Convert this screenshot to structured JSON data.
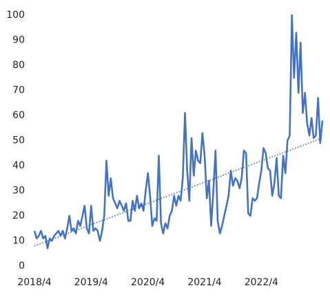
{
  "chart_data": {
    "type": "line",
    "color": "#4472c4",
    "categories": [
      "2018/4",
      null,
      null,
      null,
      null,
      null,
      null,
      null,
      null,
      null,
      null,
      null,
      null,
      null,
      null,
      null,
      null,
      null,
      null,
      null,
      null,
      null,
      null,
      null,
      null,
      null,
      "2019/4",
      null,
      null,
      null,
      null,
      null,
      null,
      null,
      null,
      null,
      null,
      null,
      null,
      null,
      null,
      null,
      null,
      null,
      null,
      null,
      null,
      null,
      null,
      null,
      null,
      null,
      "2020/4",
      null,
      null,
      null,
      null,
      null,
      null,
      null,
      null,
      null,
      null,
      null,
      null,
      null,
      null,
      null,
      null,
      null,
      null,
      null,
      null,
      null,
      null,
      null,
      null,
      null,
      "2021/4",
      null,
      null,
      null,
      null,
      null,
      null,
      null,
      null,
      null,
      null,
      null,
      null,
      null,
      null,
      null,
      null,
      null,
      null,
      null,
      null,
      null,
      null,
      null,
      null,
      null,
      "2022/4",
      null,
      null,
      null,
      null,
      null,
      null,
      null,
      null,
      null,
      null,
      null,
      null,
      null,
      null,
      null,
      null,
      null,
      null,
      null,
      null,
      null,
      null,
      null,
      null,
      null,
      null,
      null,
      null
    ],
    "values": [
      14,
      11,
      12,
      14,
      11,
      12,
      7,
      11,
      10,
      12,
      13,
      14,
      12,
      14,
      11,
      15,
      20,
      14,
      15,
      13,
      18,
      16,
      20,
      24,
      15,
      13,
      24,
      14,
      15,
      14,
      10,
      14,
      20,
      42,
      28,
      35,
      27,
      25,
      23,
      26,
      24,
      22,
      25,
      18,
      18,
      26,
      22,
      28,
      23,
      25,
      22,
      30,
      37,
      28,
      16,
      19,
      18,
      44,
      17,
      13,
      17,
      15,
      20,
      22,
      28,
      24,
      28,
      26,
      35,
      61,
      38,
      26,
      51,
      36,
      46,
      42,
      41,
      53,
      44,
      27,
      34,
      16,
      30,
      46,
      18,
      13,
      16,
      20,
      24,
      28,
      38,
      32,
      35,
      34,
      31,
      35,
      46,
      45,
      21,
      20,
      27,
      26,
      27,
      33,
      38,
      47,
      45,
      39,
      38,
      28,
      33,
      43,
      28,
      27,
      44,
      37,
      50,
      52,
      100,
      75,
      93,
      69,
      89,
      61,
      69,
      57,
      52,
      59,
      51,
      52,
      67,
      49,
      58
    ],
    "trend": [
      8,
      51
    ],
    "ylim": [
      0,
      100
    ],
    "yticks": [
      0,
      10,
      20,
      30,
      40,
      50,
      60,
      70,
      80,
      90,
      100
    ]
  }
}
